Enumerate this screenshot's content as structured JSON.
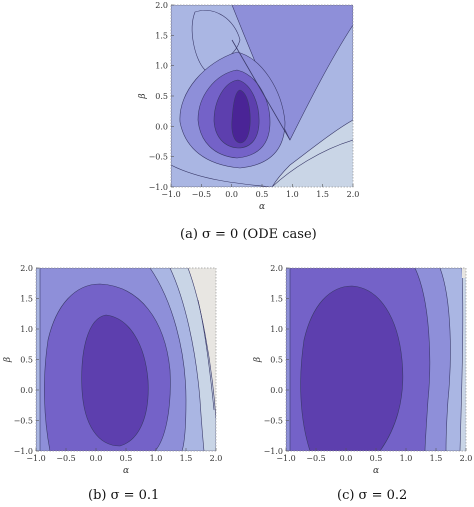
{
  "figures": [
    {
      "id": "a",
      "caption": "(a) σ = 0 (ODE case)",
      "xlabel": "α",
      "ylabel": "β",
      "xticks": [
        "−1.0",
        "−0.5",
        "0.0",
        "0.5",
        "1.0",
        "1.5",
        "2.0"
      ],
      "yticks": [
        "−1.0",
        "−0.5",
        "0.0",
        "0.5",
        "1.0",
        "1.5",
        "2.0"
      ]
    },
    {
      "id": "b",
      "caption": "(b) σ = 0.1",
      "xlabel": "α",
      "ylabel": "β",
      "xticks": [
        "−1.0",
        "−0.5",
        "0.0",
        "0.5",
        "1.0",
        "1.5",
        "2.0"
      ],
      "yticks": [
        "−1.0",
        "−0.5",
        "0.0",
        "0.5",
        "1.0",
        "1.5",
        "2.0"
      ]
    },
    {
      "id": "c",
      "caption": "(c) σ = 0.2",
      "xlabel": "α",
      "ylabel": "β",
      "xticks": [
        "−1.0",
        "−0.5",
        "0.0",
        "0.5",
        "1.0",
        "1.5",
        "2.0"
      ],
      "yticks": [
        "−1.0",
        "−0.5",
        "0.0",
        "0.5",
        "1.0",
        "1.5",
        "2.0"
      ]
    }
  ],
  "colors": {
    "level0": "#e8e6e2",
    "level1": "#c9d5e6",
    "level2": "#aab6e3",
    "level3": "#8e8fd9",
    "level4": "#7462c8",
    "level5": "#5d3fae",
    "level6": "#4a2496",
    "contour": "#3a3a6a"
  }
}
